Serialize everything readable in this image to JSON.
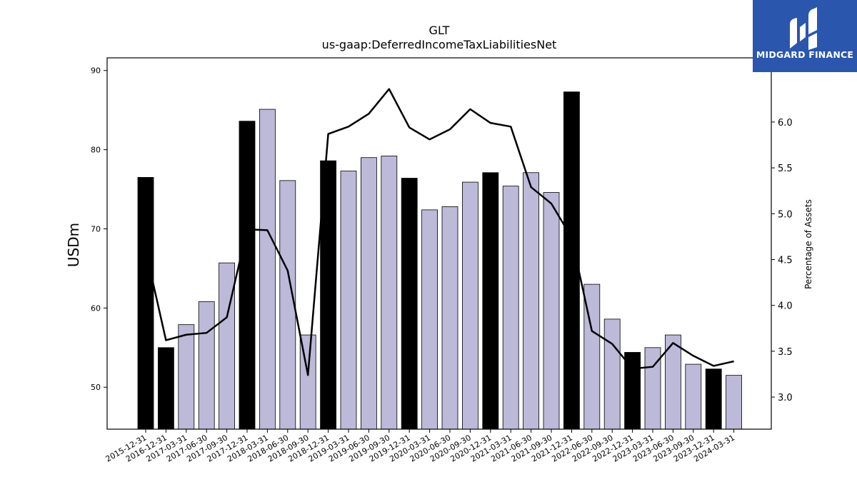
{
  "chart_data": {
    "type": "bar",
    "title": "GLT",
    "subtitle": "us-gaap:DeferredIncomeTaxLiabilitiesNet",
    "ylabel": "USDm",
    "y2label": "Percentage of Assets",
    "ylim": [
      44.7,
      91.6
    ],
    "y2lim": [
      2.65,
      6.7
    ],
    "yticks": [
      50,
      60,
      70,
      80,
      90
    ],
    "y2ticks": [
      "3.0",
      "3.5",
      "4.0",
      "4.5",
      "5.0",
      "5.5",
      "6.0"
    ],
    "categories": [
      "2015-12-31",
      "2016-12-31",
      "2017-03-31",
      "2017-06-30",
      "2017-09-30",
      "2017-12-31",
      "2018-03-31",
      "2018-06-30",
      "2018-09-30",
      "2018-12-31",
      "2019-03-31",
      "2019-06-30",
      "2019-09-30",
      "2019-12-31",
      "2020-03-31",
      "2020-06-30",
      "2020-09-30",
      "2020-12-31",
      "2021-03-31",
      "2021-06-30",
      "2021-09-30",
      "2021-12-31",
      "2022-06-30",
      "2022-09-30",
      "2022-12-31",
      "2023-03-31",
      "2023-06-30",
      "2023-09-30",
      "2023-12-31",
      "2024-03-31"
    ],
    "series": [
      {
        "kind": "bar",
        "values": [
          76.5,
          55.0,
          57.9,
          60.8,
          65.7,
          83.6,
          85.1,
          76.1,
          56.6,
          78.6,
          77.3,
          79.0,
          79.2,
          76.4,
          72.4,
          72.8,
          75.9,
          77.1,
          75.4,
          77.1,
          74.6,
          87.3,
          63.0,
          58.6,
          54.4,
          55.0,
          56.6,
          52.9,
          52.3,
          51.5
        ],
        "annual": [
          true,
          true,
          false,
          false,
          false,
          true,
          false,
          false,
          false,
          true,
          false,
          false,
          false,
          true,
          false,
          false,
          false,
          true,
          false,
          false,
          false,
          true,
          false,
          false,
          true,
          false,
          false,
          false,
          true,
          false
        ]
      },
      {
        "kind": "line",
        "axis": "right",
        "values": [
          4.6,
          3.62,
          3.68,
          3.7,
          3.87,
          4.83,
          4.82,
          4.38,
          3.24,
          5.87,
          5.95,
          6.09,
          6.36,
          5.94,
          5.81,
          5.92,
          6.14,
          5.99,
          5.95,
          5.29,
          5.11,
          4.74,
          3.72,
          3.58,
          3.31,
          3.33,
          3.59,
          3.45,
          3.34,
          3.39
        ]
      }
    ],
    "colors": {
      "annual_bar": "#000000",
      "quarter_bar": "#bcb9d9",
      "line": "#000000"
    }
  },
  "logo": {
    "text": "MIDGARD FINANCE",
    "bg": "#2a57ad"
  }
}
